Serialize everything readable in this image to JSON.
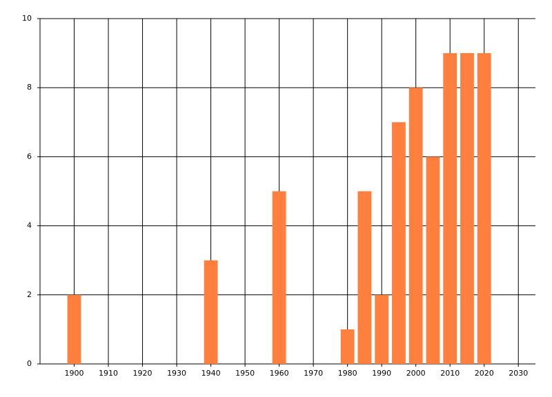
{
  "chart_data": {
    "type": "bar",
    "x": [
      1900,
      1940,
      1960,
      1980,
      1985,
      1990,
      1995,
      2000,
      2005,
      2010,
      2015,
      2020
    ],
    "values": [
      2,
      3,
      5,
      1,
      5,
      2,
      7,
      8,
      6,
      9,
      9,
      9
    ],
    "color": "#ff7f3f",
    "xlim": [
      1890,
      2035
    ],
    "xticks": [
      1900,
      1910,
      1920,
      1930,
      1940,
      1950,
      1960,
      1970,
      1980,
      1990,
      2000,
      2010,
      2020,
      2030
    ],
    "ylim": [
      0,
      10
    ],
    "yticks": [
      0,
      2,
      4,
      6,
      8,
      10
    ],
    "grid": true
  }
}
